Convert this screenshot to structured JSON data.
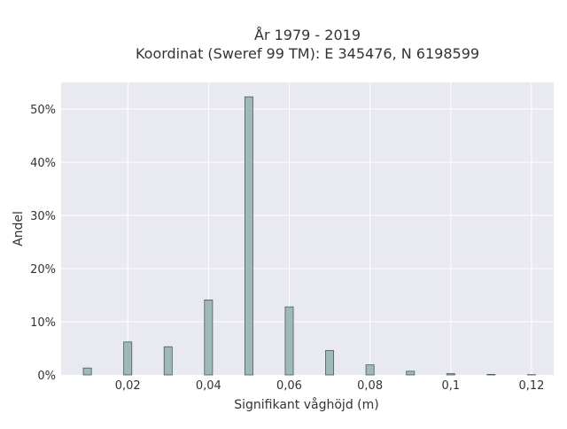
{
  "chart_data": {
    "type": "bar",
    "title_lines": [
      "År 1979 - 2019",
      "Koordinat (Sweref 99 TM): E 345476, N 6198599"
    ],
    "xlabel": "Signifikant våghöjd (m)",
    "ylabel": "Andel",
    "x_ticks": [
      {
        "value": 0.02,
        "label": "0,02"
      },
      {
        "value": 0.04,
        "label": "0,04"
      },
      {
        "value": 0.06,
        "label": "0,06"
      },
      {
        "value": 0.08,
        "label": "0,08"
      },
      {
        "value": 0.1,
        "label": "0,1"
      },
      {
        "value": 0.12,
        "label": "0,12"
      }
    ],
    "y_ticks": [
      {
        "value": 0,
        "label": "0%"
      },
      {
        "value": 10,
        "label": "10%"
      },
      {
        "value": 20,
        "label": "20%"
      },
      {
        "value": 30,
        "label": "30%"
      },
      {
        "value": 40,
        "label": "40%"
      },
      {
        "value": 50,
        "label": "50%"
      }
    ],
    "xlim": [
      0.0035,
      0.1255
    ],
    "ylim": [
      0,
      55
    ],
    "bar_width": 0.002,
    "bars": [
      {
        "x": 0.01,
        "y": 1.3
      },
      {
        "x": 0.02,
        "y": 6.2
      },
      {
        "x": 0.03,
        "y": 5.3
      },
      {
        "x": 0.04,
        "y": 14.1
      },
      {
        "x": 0.05,
        "y": 52.3
      },
      {
        "x": 0.06,
        "y": 12.8
      },
      {
        "x": 0.07,
        "y": 4.6
      },
      {
        "x": 0.08,
        "y": 1.9
      },
      {
        "x": 0.09,
        "y": 0.7
      },
      {
        "x": 0.1,
        "y": 0.25
      },
      {
        "x": 0.11,
        "y": 0.1
      },
      {
        "x": 0.12,
        "y": 0.05
      }
    ],
    "grid": true,
    "colors": {
      "plot_bg": "#e9e9f1",
      "grid": "#ffffff",
      "bar_fill": "#9fb8b8",
      "bar_stroke": "#4a5a5a"
    }
  }
}
